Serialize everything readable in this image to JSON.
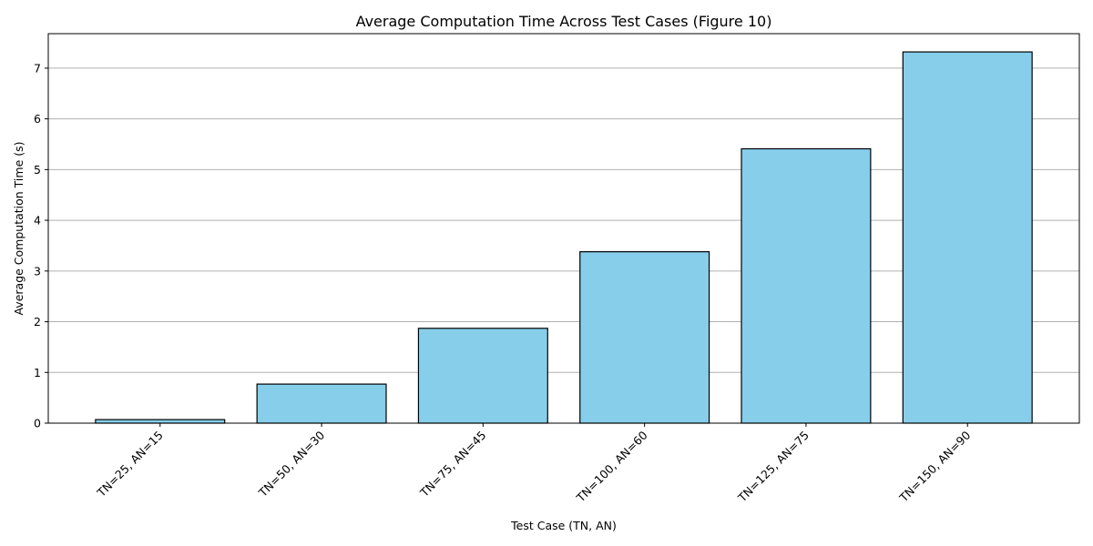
{
  "chart_data": {
    "type": "bar",
    "title": "Average Computation Time Across Test Cases (Figure 10)",
    "xlabel": "Test Case (TN, AN)",
    "ylabel": "Average Computation Time (s)",
    "categories": [
      "TN=25, AN=15",
      "TN=50, AN=30",
      "TN=75, AN=45",
      "TN=100, AN=60",
      "TN=125, AN=75",
      "TN=150, AN=90"
    ],
    "values": [
      0.07,
      0.77,
      1.87,
      3.38,
      5.41,
      7.32
    ],
    "ylim": [
      0,
      7.68
    ],
    "yticks": [
      0,
      1,
      2,
      3,
      4,
      5,
      6,
      7
    ],
    "grid": "y",
    "bar_color": "#87ceeb",
    "edge_color": "#000000"
  }
}
